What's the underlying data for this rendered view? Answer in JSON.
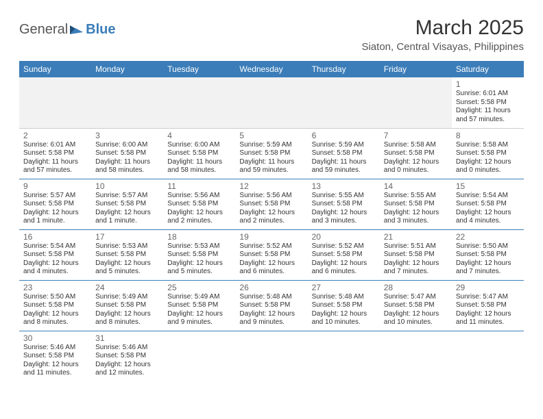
{
  "logo": {
    "part1": "General",
    "part2": "Blue"
  },
  "title": "March 2025",
  "location": "Siaton, Central Visayas, Philippines",
  "colors": {
    "header_bg": "#3b7db8",
    "header_fg": "#ffffff",
    "row_border": "#3b7db8",
    "empty_bg": "#f2f2f2",
    "text": "#333333",
    "daynum": "#666666"
  },
  "day_headers": [
    "Sunday",
    "Monday",
    "Tuesday",
    "Wednesday",
    "Thursday",
    "Friday",
    "Saturday"
  ],
  "weeks": [
    [
      null,
      null,
      null,
      null,
      null,
      null,
      {
        "n": "1",
        "sr": "Sunrise: 6:01 AM",
        "ss": "Sunset: 5:58 PM",
        "dl": "Daylight: 11 hours and 57 minutes."
      }
    ],
    [
      {
        "n": "2",
        "sr": "Sunrise: 6:01 AM",
        "ss": "Sunset: 5:58 PM",
        "dl": "Daylight: 11 hours and 57 minutes."
      },
      {
        "n": "3",
        "sr": "Sunrise: 6:00 AM",
        "ss": "Sunset: 5:58 PM",
        "dl": "Daylight: 11 hours and 58 minutes."
      },
      {
        "n": "4",
        "sr": "Sunrise: 6:00 AM",
        "ss": "Sunset: 5:58 PM",
        "dl": "Daylight: 11 hours and 58 minutes."
      },
      {
        "n": "5",
        "sr": "Sunrise: 5:59 AM",
        "ss": "Sunset: 5:58 PM",
        "dl": "Daylight: 11 hours and 59 minutes."
      },
      {
        "n": "6",
        "sr": "Sunrise: 5:59 AM",
        "ss": "Sunset: 5:58 PM",
        "dl": "Daylight: 11 hours and 59 minutes."
      },
      {
        "n": "7",
        "sr": "Sunrise: 5:58 AM",
        "ss": "Sunset: 5:58 PM",
        "dl": "Daylight: 12 hours and 0 minutes."
      },
      {
        "n": "8",
        "sr": "Sunrise: 5:58 AM",
        "ss": "Sunset: 5:58 PM",
        "dl": "Daylight: 12 hours and 0 minutes."
      }
    ],
    [
      {
        "n": "9",
        "sr": "Sunrise: 5:57 AM",
        "ss": "Sunset: 5:58 PM",
        "dl": "Daylight: 12 hours and 1 minute."
      },
      {
        "n": "10",
        "sr": "Sunrise: 5:57 AM",
        "ss": "Sunset: 5:58 PM",
        "dl": "Daylight: 12 hours and 1 minute."
      },
      {
        "n": "11",
        "sr": "Sunrise: 5:56 AM",
        "ss": "Sunset: 5:58 PM",
        "dl": "Daylight: 12 hours and 2 minutes."
      },
      {
        "n": "12",
        "sr": "Sunrise: 5:56 AM",
        "ss": "Sunset: 5:58 PM",
        "dl": "Daylight: 12 hours and 2 minutes."
      },
      {
        "n": "13",
        "sr": "Sunrise: 5:55 AM",
        "ss": "Sunset: 5:58 PM",
        "dl": "Daylight: 12 hours and 3 minutes."
      },
      {
        "n": "14",
        "sr": "Sunrise: 5:55 AM",
        "ss": "Sunset: 5:58 PM",
        "dl": "Daylight: 12 hours and 3 minutes."
      },
      {
        "n": "15",
        "sr": "Sunrise: 5:54 AM",
        "ss": "Sunset: 5:58 PM",
        "dl": "Daylight: 12 hours and 4 minutes."
      }
    ],
    [
      {
        "n": "16",
        "sr": "Sunrise: 5:54 AM",
        "ss": "Sunset: 5:58 PM",
        "dl": "Daylight: 12 hours and 4 minutes."
      },
      {
        "n": "17",
        "sr": "Sunrise: 5:53 AM",
        "ss": "Sunset: 5:58 PM",
        "dl": "Daylight: 12 hours and 5 minutes."
      },
      {
        "n": "18",
        "sr": "Sunrise: 5:53 AM",
        "ss": "Sunset: 5:58 PM",
        "dl": "Daylight: 12 hours and 5 minutes."
      },
      {
        "n": "19",
        "sr": "Sunrise: 5:52 AM",
        "ss": "Sunset: 5:58 PM",
        "dl": "Daylight: 12 hours and 6 minutes."
      },
      {
        "n": "20",
        "sr": "Sunrise: 5:52 AM",
        "ss": "Sunset: 5:58 PM",
        "dl": "Daylight: 12 hours and 6 minutes."
      },
      {
        "n": "21",
        "sr": "Sunrise: 5:51 AM",
        "ss": "Sunset: 5:58 PM",
        "dl": "Daylight: 12 hours and 7 minutes."
      },
      {
        "n": "22",
        "sr": "Sunrise: 5:50 AM",
        "ss": "Sunset: 5:58 PM",
        "dl": "Daylight: 12 hours and 7 minutes."
      }
    ],
    [
      {
        "n": "23",
        "sr": "Sunrise: 5:50 AM",
        "ss": "Sunset: 5:58 PM",
        "dl": "Daylight: 12 hours and 8 minutes."
      },
      {
        "n": "24",
        "sr": "Sunrise: 5:49 AM",
        "ss": "Sunset: 5:58 PM",
        "dl": "Daylight: 12 hours and 8 minutes."
      },
      {
        "n": "25",
        "sr": "Sunrise: 5:49 AM",
        "ss": "Sunset: 5:58 PM",
        "dl": "Daylight: 12 hours and 9 minutes."
      },
      {
        "n": "26",
        "sr": "Sunrise: 5:48 AM",
        "ss": "Sunset: 5:58 PM",
        "dl": "Daylight: 12 hours and 9 minutes."
      },
      {
        "n": "27",
        "sr": "Sunrise: 5:48 AM",
        "ss": "Sunset: 5:58 PM",
        "dl": "Daylight: 12 hours and 10 minutes."
      },
      {
        "n": "28",
        "sr": "Sunrise: 5:47 AM",
        "ss": "Sunset: 5:58 PM",
        "dl": "Daylight: 12 hours and 10 minutes."
      },
      {
        "n": "29",
        "sr": "Sunrise: 5:47 AM",
        "ss": "Sunset: 5:58 PM",
        "dl": "Daylight: 12 hours and 11 minutes."
      }
    ],
    [
      {
        "n": "30",
        "sr": "Sunrise: 5:46 AM",
        "ss": "Sunset: 5:58 PM",
        "dl": "Daylight: 12 hours and 11 minutes."
      },
      {
        "n": "31",
        "sr": "Sunrise: 5:46 AM",
        "ss": "Sunset: 5:58 PM",
        "dl": "Daylight: 12 hours and 12 minutes."
      },
      null,
      null,
      null,
      null,
      null
    ]
  ]
}
